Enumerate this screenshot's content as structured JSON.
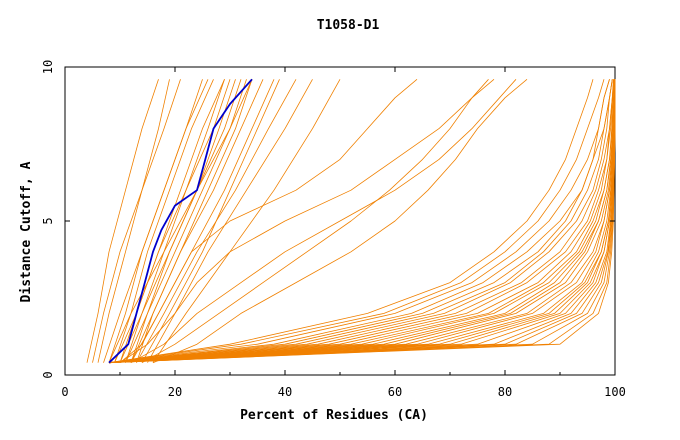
{
  "chart_data": {
    "type": "line",
    "title": "T1058-D1",
    "xlabel": "Percent of Residues (CA)",
    "ylabel": "Distance Cutoff, A",
    "xlim": [
      0,
      100
    ],
    "ylim": [
      0,
      10
    ],
    "x_ticks": [
      0,
      20,
      40,
      60,
      80,
      100
    ],
    "y_ticks": [
      0,
      5,
      10
    ],
    "x_tick_labels": [
      "0",
      "20",
      "40",
      "60",
      "80",
      "100"
    ],
    "y_tick_labels": [
      "0",
      "5",
      "10"
    ],
    "grid": false,
    "legend": "none",
    "colors": {
      "models": "#f08000",
      "highlight": "#0000cc",
      "axis": "#000000"
    },
    "highlight_series": {
      "y": [
        0.4,
        1.0,
        2.0,
        3.0,
        4.0,
        4.7,
        5.5,
        6.0,
        7.0,
        8.0,
        8.8,
        9.6
      ],
      "x": [
        8.0,
        11.5,
        13.0,
        14.5,
        16.0,
        17.5,
        20.0,
        24.0,
        25.5,
        27.0,
        30.0,
        34.0
      ]
    },
    "series_left": [
      {
        "y": [
          0.4,
          2,
          4,
          6,
          8,
          9.6
        ],
        "x": [
          4,
          6,
          8,
          11,
          14,
          17
        ]
      },
      {
        "y": [
          0.4,
          2,
          4,
          6,
          8,
          9.6
        ],
        "x": [
          5,
          7,
          10,
          14,
          18,
          21
        ]
      },
      {
        "y": [
          0.4,
          2,
          4,
          6,
          8,
          9.6
        ],
        "x": [
          6,
          8,
          11,
          14,
          17,
          19
        ]
      },
      {
        "y": [
          0.4,
          2,
          4,
          6,
          8,
          9.6
        ],
        "x": [
          7,
          10,
          14,
          18,
          22,
          26
        ]
      },
      {
        "y": [
          0.4,
          2,
          4,
          6,
          8,
          9.6
        ],
        "x": [
          8,
          11,
          14,
          18,
          22,
          25
        ]
      },
      {
        "y": [
          0.4,
          2,
          4,
          6,
          8,
          9.6
        ],
        "x": [
          9,
          12,
          15,
          19,
          23,
          27
        ]
      },
      {
        "y": [
          0.4,
          2,
          4,
          6,
          8,
          9.6
        ],
        "x": [
          10,
          13,
          17,
          21,
          25,
          29
        ]
      },
      {
        "y": [
          0.4,
          2,
          4,
          6,
          8,
          9.6
        ],
        "x": [
          10,
          14,
          19,
          24,
          28,
          31
        ]
      },
      {
        "y": [
          0.4,
          2,
          4,
          6,
          8,
          9.6
        ],
        "x": [
          11,
          15,
          20,
          25,
          30,
          33
        ]
      },
      {
        "y": [
          0.4,
          2,
          4,
          6,
          8,
          9.6
        ],
        "x": [
          12,
          16,
          21,
          27,
          32,
          36
        ]
      },
      {
        "y": [
          0.4,
          2,
          4,
          6,
          8,
          9.6
        ],
        "x": [
          12,
          17,
          23,
          29,
          34,
          38
        ]
      },
      {
        "y": [
          0.4,
          2,
          4,
          6,
          8,
          9.6
        ],
        "x": [
          13,
          18,
          24,
          31,
          37,
          42
        ]
      },
      {
        "y": [
          0.4,
          2,
          4,
          6,
          8,
          9.6
        ],
        "x": [
          14,
          19,
          25,
          30,
          35,
          39
        ]
      },
      {
        "y": [
          0.4,
          2,
          4,
          6,
          8,
          9.6
        ],
        "x": [
          8,
          12,
          18,
          24,
          30,
          34
        ]
      },
      {
        "y": [
          0.4,
          2,
          4,
          6,
          8,
          9.6
        ],
        "x": [
          9,
          13,
          17,
          22,
          27,
          30
        ]
      },
      {
        "y": [
          0.4,
          2,
          4,
          6,
          8,
          9.6
        ],
        "x": [
          11,
          14,
          18,
          22,
          26,
          29
        ]
      },
      {
        "y": [
          0.4,
          2,
          4,
          6,
          8,
          9.6
        ],
        "x": [
          12,
          15,
          19,
          24,
          29,
          32
        ]
      },
      {
        "y": [
          0.4,
          2,
          4,
          6,
          8,
          9.6
        ],
        "x": [
          13,
          16,
          21,
          26,
          31,
          34
        ]
      },
      {
        "y": [
          0.4,
          2,
          4,
          6,
          8,
          9.6
        ],
        "x": [
          15,
          20,
          26,
          33,
          40,
          45
        ]
      },
      {
        "y": [
          0.4,
          2,
          4,
          6,
          8,
          9.6
        ],
        "x": [
          16,
          22,
          30,
          38,
          45,
          50
        ]
      }
    ],
    "series_mid": [
      {
        "y": [
          0.4,
          1,
          2,
          3,
          4,
          5,
          6,
          7,
          8,
          9,
          9.6
        ],
        "x": [
          10,
          14,
          17,
          20,
          23,
          30,
          42,
          50,
          55,
          60,
          64
        ]
      },
      {
        "y": [
          0.4,
          1,
          2,
          3,
          4,
          5,
          6,
          7,
          8,
          9,
          9.6
        ],
        "x": [
          10,
          15,
          20,
          24,
          30,
          40,
          52,
          60,
          68,
          74,
          78
        ]
      },
      {
        "y": [
          0.4,
          1,
          2,
          3,
          4,
          5,
          6,
          7,
          8,
          9,
          9.6
        ],
        "x": [
          12,
          18,
          24,
          32,
          40,
          50,
          60,
          68,
          74,
          79,
          82
        ]
      },
      {
        "y": [
          0.4,
          1,
          2,
          3,
          4,
          5,
          6,
          7,
          8,
          9,
          9.6
        ],
        "x": [
          14,
          20,
          28,
          36,
          44,
          52,
          59,
          65,
          70,
          74,
          77
        ]
      },
      {
        "y": [
          0.4,
          1,
          2,
          3,
          4,
          5,
          6,
          7,
          8,
          9,
          9.6
        ],
        "x": [
          16,
          24,
          32,
          42,
          52,
          60,
          66,
          71,
          75,
          80,
          84
        ]
      }
    ],
    "series_right": [
      {
        "y": [
          0.4,
          1,
          2,
          3,
          4,
          5,
          6,
          7,
          8,
          9,
          9.6
        ],
        "x": [
          8,
          30,
          55,
          70,
          78,
          84,
          88,
          91,
          93,
          95,
          96
        ]
      },
      {
        "y": [
          0.4,
          1,
          2,
          3,
          4,
          5,
          6,
          7,
          8,
          9,
          9.6
        ],
        "x": [
          8,
          32,
          58,
          72,
          80,
          86,
          90,
          93,
          95,
          97,
          98
        ]
      },
      {
        "y": [
          0.4,
          1,
          2,
          3,
          4,
          5,
          6,
          7,
          8,
          9,
          9.6
        ],
        "x": [
          8,
          35,
          60,
          74,
          82,
          88,
          92,
          95,
          97,
          98,
          99
        ]
      },
      {
        "y": [
          0.4,
          1,
          2,
          3,
          4,
          5,
          6,
          7,
          8,
          9,
          9.6
        ],
        "x": [
          8,
          38,
          63,
          76,
          84,
          90,
          94,
          96,
          97,
          98,
          99
        ]
      },
      {
        "y": [
          0.4,
          1,
          2,
          3,
          4,
          5,
          6,
          7,
          8,
          9,
          9.6
        ],
        "x": [
          8,
          40,
          65,
          78,
          86,
          91,
          94,
          96,
          98,
          99,
          99.5
        ]
      },
      {
        "y": [
          0.4,
          1,
          2,
          3,
          4,
          5,
          6,
          7,
          8,
          9,
          9.6
        ],
        "x": [
          8,
          42,
          67,
          80,
          87,
          92,
          95,
          97,
          98,
          99,
          99.5
        ]
      },
      {
        "y": [
          0.4,
          1,
          2,
          3,
          4,
          5,
          6,
          7,
          8,
          9,
          9.6
        ],
        "x": [
          8,
          44,
          69,
          81,
          88,
          93,
          96,
          97.5,
          98.5,
          99,
          99.5
        ]
      },
      {
        "y": [
          0.4,
          1,
          2,
          3,
          4,
          5,
          6,
          7,
          8,
          9,
          9.6
        ],
        "x": [
          8,
          46,
          71,
          83,
          90,
          94,
          96.5,
          98,
          99,
          99.5,
          99.7
        ]
      },
      {
        "y": [
          0.4,
          1,
          2,
          3,
          4,
          5,
          6,
          7,
          8,
          9,
          9.6
        ],
        "x": [
          8,
          48,
          73,
          84,
          91,
          95,
          97,
          98.5,
          99,
          99.5,
          99.8
        ]
      },
      {
        "y": [
          0.4,
          1,
          2,
          3,
          4,
          5,
          6,
          7,
          8,
          9,
          9.6
        ],
        "x": [
          8,
          50,
          75,
          86,
          92,
          95.5,
          97.5,
          98.5,
          99.2,
          99.6,
          99.8
        ]
      },
      {
        "y": [
          0.4,
          1,
          2,
          3,
          4,
          5,
          6,
          7,
          8,
          9,
          9.6
        ],
        "x": [
          8,
          52,
          77,
          87,
          93,
          96,
          98,
          99,
          99.4,
          99.7,
          99.9
        ]
      },
      {
        "y": [
          0.4,
          1,
          2,
          3,
          4,
          5,
          6,
          7,
          8,
          9,
          9.6
        ],
        "x": [
          8,
          54,
          78,
          88,
          93.5,
          96.5,
          98,
          99,
          99.5,
          99.8,
          99.9
        ]
      },
      {
        "y": [
          0.4,
          1,
          2,
          3,
          4,
          5,
          6,
          7,
          8,
          9,
          9.6
        ],
        "x": [
          8,
          56,
          80,
          89,
          94,
          97,
          98.5,
          99.2,
          99.6,
          99.8,
          99.9
        ]
      },
      {
        "y": [
          0.4,
          1,
          2,
          3,
          4,
          5,
          6,
          7,
          8,
          9,
          9.6
        ],
        "x": [
          8,
          58,
          81,
          90,
          94.5,
          97,
          98.5,
          99.3,
          99.7,
          99.9,
          99.9
        ]
      },
      {
        "y": [
          0.4,
          1,
          2,
          3,
          4,
          5,
          6,
          7,
          8,
          9,
          9.6
        ],
        "x": [
          8,
          60,
          82,
          91,
          95,
          97.5,
          98.8,
          99.4,
          99.7,
          99.9,
          99.9
        ]
      },
      {
        "y": [
          0.4,
          1,
          2,
          3,
          4,
          5,
          6,
          7,
          8,
          9,
          9.6
        ],
        "x": [
          8,
          62,
          84,
          92,
          96,
          98,
          99,
          99.5,
          99.8,
          99.9,
          100
        ]
      },
      {
        "y": [
          0.4,
          1,
          2,
          3,
          4,
          5,
          6,
          7,
          8,
          9,
          9.6
        ],
        "x": [
          8,
          64,
          85,
          93,
          96.5,
          98,
          99,
          99.5,
          99.8,
          99.9,
          100
        ]
      },
      {
        "y": [
          0.4,
          1,
          2,
          3,
          4,
          5,
          6,
          7,
          8,
          9,
          9.6
        ],
        "x": [
          8,
          66,
          87,
          94,
          97,
          98.5,
          99.2,
          99.6,
          99.8,
          99.9,
          100
        ]
      },
      {
        "y": [
          0.4,
          1,
          2,
          3,
          4,
          5,
          6,
          7,
          8,
          9,
          9.6
        ],
        "x": [
          8,
          68,
          88,
          94.5,
          97.5,
          98.8,
          99.3,
          99.6,
          99.8,
          99.9,
          100
        ]
      },
      {
        "y": [
          0.4,
          1,
          2,
          3,
          4,
          5,
          6,
          7,
          8,
          9,
          9.6
        ],
        "x": [
          8,
          70,
          89,
          95,
          97.5,
          98.8,
          99.4,
          99.7,
          99.9,
          99.9,
          100
        ]
      },
      {
        "y": [
          0.4,
          1,
          2,
          3,
          4,
          5,
          6,
          7,
          8,
          9,
          9.6
        ],
        "x": [
          8,
          72,
          90,
          95.5,
          98,
          99,
          99.5,
          99.7,
          99.9,
          99.9,
          100
        ]
      },
      {
        "y": [
          0.4,
          1,
          2,
          3,
          4,
          5,
          6,
          7,
          8,
          9,
          9.6
        ],
        "x": [
          8,
          75,
          91,
          96,
          98,
          99,
          99.5,
          99.8,
          99.9,
          100,
          100
        ]
      },
      {
        "y": [
          0.4,
          1,
          2,
          3,
          4,
          5,
          6,
          7,
          8,
          9,
          9.6
        ],
        "x": [
          8,
          78,
          92,
          96.5,
          98.5,
          99.2,
          99.6,
          99.8,
          99.9,
          100,
          100
        ]
      },
      {
        "y": [
          0.4,
          1,
          2,
          3,
          4,
          5,
          6,
          7,
          8,
          9,
          9.6
        ],
        "x": [
          8,
          80,
          93,
          97,
          98.7,
          99.3,
          99.6,
          99.8,
          99.9,
          100,
          100
        ]
      },
      {
        "y": [
          0.4,
          1,
          2,
          3,
          4,
          5,
          6,
          7,
          8,
          9,
          9.6
        ],
        "x": [
          8,
          82,
          94,
          97.5,
          98.8,
          99.4,
          99.7,
          99.9,
          99.9,
          100,
          100
        ]
      },
      {
        "y": [
          0.4,
          1,
          2,
          3,
          4,
          5,
          6,
          7,
          8,
          9,
          9.6
        ],
        "x": [
          8,
          85,
          95,
          98,
          99,
          99.5,
          99.7,
          99.9,
          100,
          100,
          100
        ]
      },
      {
        "y": [
          0.4,
          1,
          2,
          3,
          4,
          5,
          6,
          7,
          8,
          9,
          9.6
        ],
        "x": [
          8,
          88,
          96,
          98.5,
          99.2,
          99.6,
          99.8,
          99.9,
          100,
          100,
          100
        ]
      },
      {
        "y": [
          0.4,
          1,
          2,
          3,
          4,
          5,
          6,
          7,
          8,
          9,
          9.6
        ],
        "x": [
          8,
          90,
          97,
          98.8,
          99.4,
          99.7,
          99.8,
          99.9,
          100,
          100,
          100
        ]
      }
    ]
  }
}
